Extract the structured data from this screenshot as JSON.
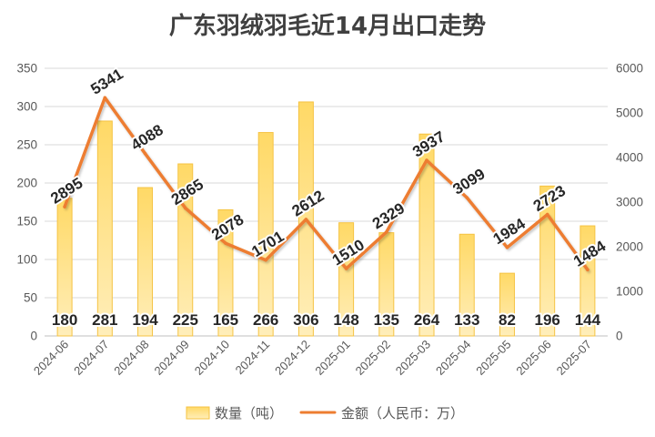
{
  "chart_data": {
    "type": "bar",
    "title": "广东羽绒羽毛近14月出口走势",
    "categories": [
      "2024-06",
      "2024-07",
      "2024-08",
      "2024-09",
      "2024-10",
      "2024-11",
      "2024-12",
      "2025-01",
      "2025-02",
      "2025-03",
      "2025-04",
      "2025-05",
      "2025-06",
      "2025-07"
    ],
    "series": [
      {
        "name": "数量（吨）",
        "type": "bar",
        "axis": "left",
        "values": [
          180,
          281,
          194,
          225,
          165,
          266,
          306,
          148,
          135,
          264,
          133,
          82,
          196,
          144
        ],
        "color": "#FFD966",
        "border_color": "#F5C343",
        "data_labels": true
      },
      {
        "name": "金额（人民币：万）",
        "type": "line",
        "axis": "right",
        "values": [
          2895,
          5341,
          4088,
          2865,
          2078,
          1701,
          2612,
          1510,
          2329,
          3937,
          3099,
          1984,
          2723,
          1484
        ],
        "color": "#ED7D31",
        "data_labels": true
      }
    ],
    "y_left": {
      "ylim": [
        0,
        350
      ],
      "ticks": [
        0,
        50,
        100,
        150,
        200,
        250,
        300,
        350
      ]
    },
    "y_right": {
      "ylim": [
        0,
        6000
      ],
      "ticks": [
        0,
        1000,
        2000,
        3000,
        4000,
        5000,
        6000
      ]
    },
    "grid": true,
    "legend": "bottom"
  }
}
